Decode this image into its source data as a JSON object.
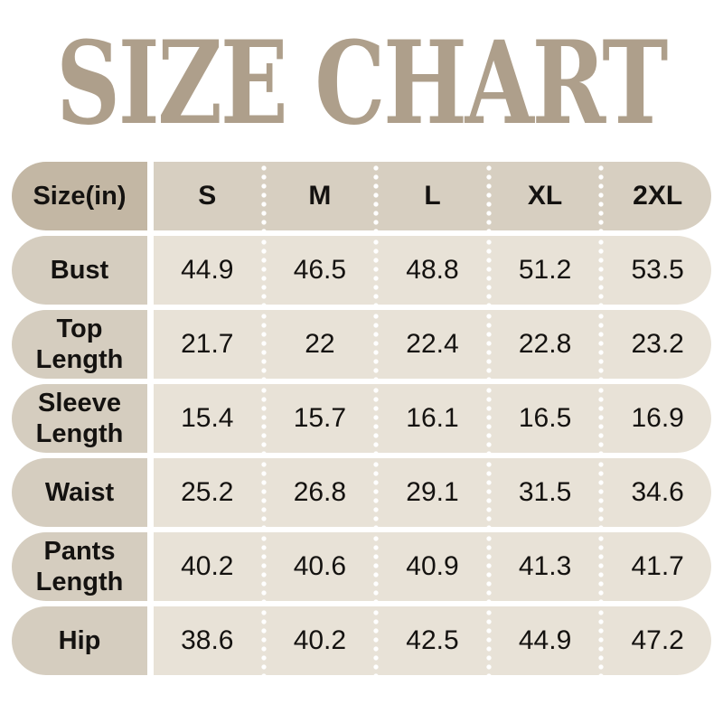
{
  "title": "SIZE CHART",
  "table": {
    "header": [
      "Size(in)",
      "S",
      "M",
      "L",
      "XL",
      "2XL"
    ],
    "rows": [
      {
        "label": "Bust",
        "values": [
          "44.9",
          "46.5",
          "48.8",
          "51.2",
          "53.5"
        ]
      },
      {
        "label": "Top Length",
        "values": [
          "21.7",
          "22",
          "22.4",
          "22.8",
          "23.2"
        ]
      },
      {
        "label": "Sleeve Length",
        "values": [
          "15.4",
          "15.7",
          "16.1",
          "16.5",
          "16.9"
        ]
      },
      {
        "label": "Waist",
        "values": [
          "25.2",
          "26.8",
          "29.1",
          "31.5",
          "34.6"
        ]
      },
      {
        "label": "Pants Length",
        "values": [
          "40.2",
          "40.6",
          "40.9",
          "41.3",
          "41.7"
        ]
      },
      {
        "label": "Hip",
        "values": [
          "38.6",
          "40.2",
          "42.5",
          "44.9",
          "47.2"
        ]
      }
    ]
  },
  "chart_data": {
    "type": "table",
    "title": "SIZE CHART",
    "unit": "inches",
    "columns": [
      "Size(in)",
      "S",
      "M",
      "L",
      "XL",
      "2XL"
    ],
    "rows": [
      {
        "measure": "Bust",
        "S": 44.9,
        "M": 46.5,
        "L": 48.8,
        "XL": 51.2,
        "2XL": 53.5
      },
      {
        "measure": "Top Length",
        "S": 21.7,
        "M": 22,
        "L": 22.4,
        "XL": 22.8,
        "2XL": 23.2
      },
      {
        "measure": "Sleeve Length",
        "S": 15.4,
        "M": 15.7,
        "L": 16.1,
        "XL": 16.5,
        "2XL": 16.9
      },
      {
        "measure": "Waist",
        "S": 25.2,
        "M": 26.8,
        "L": 29.1,
        "XL": 31.5,
        "2XL": 34.6
      },
      {
        "measure": "Pants Length",
        "S": 40.2,
        "M": 40.6,
        "L": 40.9,
        "XL": 41.3,
        "2XL": 41.7
      },
      {
        "measure": "Hip",
        "S": 38.6,
        "M": 40.2,
        "L": 42.5,
        "XL": 44.9,
        "2XL": 47.2
      }
    ]
  },
  "colors": {
    "page-bg": "#ffffff",
    "title-color": "#ae9f8b",
    "header-label-bg": "#c3b7a4",
    "header-band-bg": "#d7cfc1",
    "row-label-bg": "#d5cdbf",
    "row-band-bg": "#e8e2d7",
    "text-color": "#141210",
    "dot-color": "#ffffff"
  }
}
